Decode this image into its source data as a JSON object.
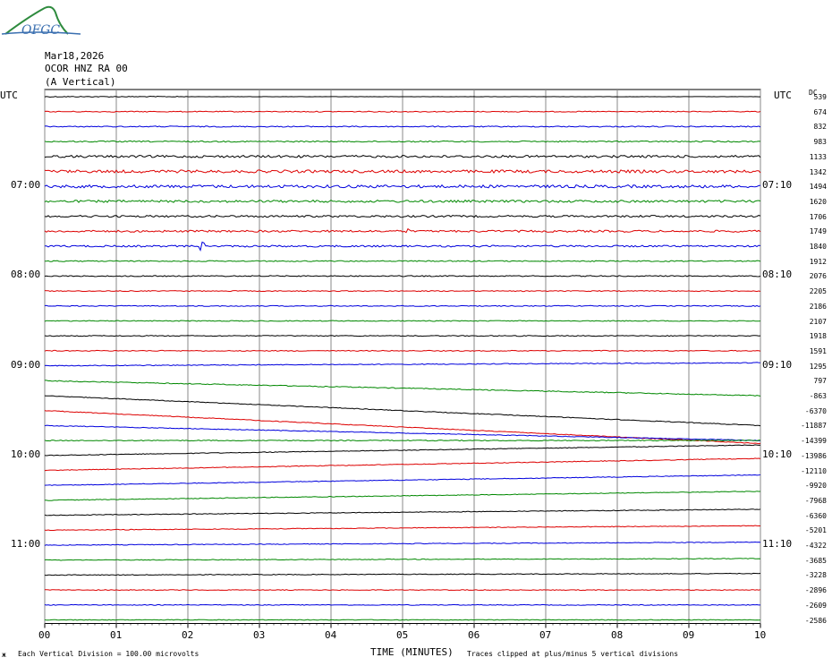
{
  "logo": {
    "text": "OFGC",
    "color": "#3a6fb0"
  },
  "header": {
    "date": "Mar18,2026",
    "station": "OCOR HNZ RA 00",
    "component": "(A Vertical)"
  },
  "left_axis_label": "UTC",
  "right_axis_label": "UTC",
  "dc_label": "DC",
  "footer": {
    "scale_note": "Each Vertical Division =  100.00 microvolts",
    "clip_note": "Traces clipped at plus/minus 5 vertical divisions",
    "small_mark": "ж"
  },
  "chart_data": {
    "type": "line",
    "xlabel": "TIME (MINUTES)",
    "x_ticks": [
      "00",
      "01",
      "02",
      "03",
      "04",
      "05",
      "06",
      "07",
      "08",
      "09",
      "10"
    ],
    "xlim": [
      0,
      10
    ],
    "left_hour_labels": [
      {
        "row": 6,
        "label": "07:00"
      },
      {
        "row": 12,
        "label": "08:00"
      },
      {
        "row": 18,
        "label": "09:00"
      },
      {
        "row": 24,
        "label": "10:00"
      },
      {
        "row": 30,
        "label": "11:00"
      }
    ],
    "right_hour_labels": [
      {
        "row": 6,
        "label": "07:10"
      },
      {
        "row": 12,
        "label": "08:10"
      },
      {
        "row": 18,
        "label": "09:10"
      },
      {
        "row": 24,
        "label": "10:10"
      },
      {
        "row": 30,
        "label": "11:10"
      }
    ],
    "trace_colors": [
      "#000000",
      "#dd0000",
      "#0000dd",
      "#008800"
    ],
    "dc_offsets": [
      539,
      674,
      832,
      983,
      1133,
      1342,
      1494,
      1620,
      1706,
      1749,
      1840,
      1912,
      2076,
      2205,
      2186,
      2107,
      1918,
      1591,
      1295,
      797,
      -863,
      -6370,
      -11887,
      -14399,
      -13986,
      -12110,
      -9920,
      -7968,
      -6360,
      -5201,
      -4322,
      -3685,
      -3228,
      -2896,
      -2609,
      -2586
    ],
    "traces": [
      {
        "start": 0,
        "end": 0,
        "amp": 0.5,
        "noise_to": 2
      },
      {
        "start": 0,
        "end": 0,
        "amp": 0.5
      },
      {
        "start": 0,
        "end": 0,
        "amp": 0.6
      },
      {
        "start": 0,
        "end": 0,
        "amp": 0.7
      },
      {
        "start": 0,
        "end": 0,
        "amp": 1.3
      },
      {
        "start": 0,
        "end": 0,
        "amp": 1.6
      },
      {
        "start": 0,
        "end": 0,
        "amp": 1.6
      },
      {
        "start": 0,
        "end": 0,
        "amp": 1.3
      },
      {
        "start": 0,
        "end": 0,
        "amp": 1.1
      },
      {
        "start": 0,
        "end": 0,
        "amp": 1.1,
        "events": [
          {
            "x": 5.07,
            "amp": 6
          },
          {
            "x": 9.85,
            "amp": 3
          }
        ]
      },
      {
        "start": 0,
        "end": 0,
        "amp": 1.0,
        "events": [
          {
            "x": 2.2,
            "amp": 7
          }
        ]
      },
      {
        "start": 0,
        "end": 0,
        "amp": 0.6
      },
      {
        "start": 0,
        "end": 0,
        "amp": 0.6
      },
      {
        "start": 0,
        "end": 0,
        "amp": 0.5
      },
      {
        "start": 0,
        "end": 0,
        "amp": 0.5
      },
      {
        "start": 0,
        "end": 0,
        "amp": 0.5
      },
      {
        "start": 0,
        "end": 0,
        "amp": 0.5
      },
      {
        "start": 0,
        "end": 0,
        "amp": 0.5
      },
      {
        "start": 0,
        "end": 0.2,
        "amp": 0.5
      },
      {
        "start": 0,
        "end": -1.0,
        "amp": 0.5
      },
      {
        "start": 0,
        "end": -2.0,
        "amp": 0.4
      },
      {
        "start": 0,
        "end": -2.2,
        "amp": 0.4
      },
      {
        "start": 0,
        "end": -1.0,
        "amp": 0.4
      },
      {
        "start": 0,
        "end": 0,
        "amp": 0.5
      },
      {
        "start": 0,
        "end": 0.7,
        "amp": 0.4
      },
      {
        "start": 0,
        "end": 0.8,
        "amp": 0.4
      },
      {
        "start": 0,
        "end": 0.7,
        "amp": 0.4
      },
      {
        "start": 0,
        "end": 0.6,
        "amp": 0.4
      },
      {
        "start": 0,
        "end": 0.4,
        "amp": 0.4
      },
      {
        "start": 0,
        "end": 0.3,
        "amp": 0.4
      },
      {
        "start": 0,
        "end": 0.2,
        "amp": 0.4
      },
      {
        "start": 0,
        "end": 0.1,
        "amp": 0.4
      },
      {
        "start": 0,
        "end": 0.1,
        "amp": 0.4
      },
      {
        "start": 0,
        "end": 0,
        "amp": 0.4
      },
      {
        "start": 0,
        "end": 0,
        "amp": 0.4
      },
      {
        "start": 0,
        "end": 0,
        "amp": 0.4
      }
    ]
  }
}
